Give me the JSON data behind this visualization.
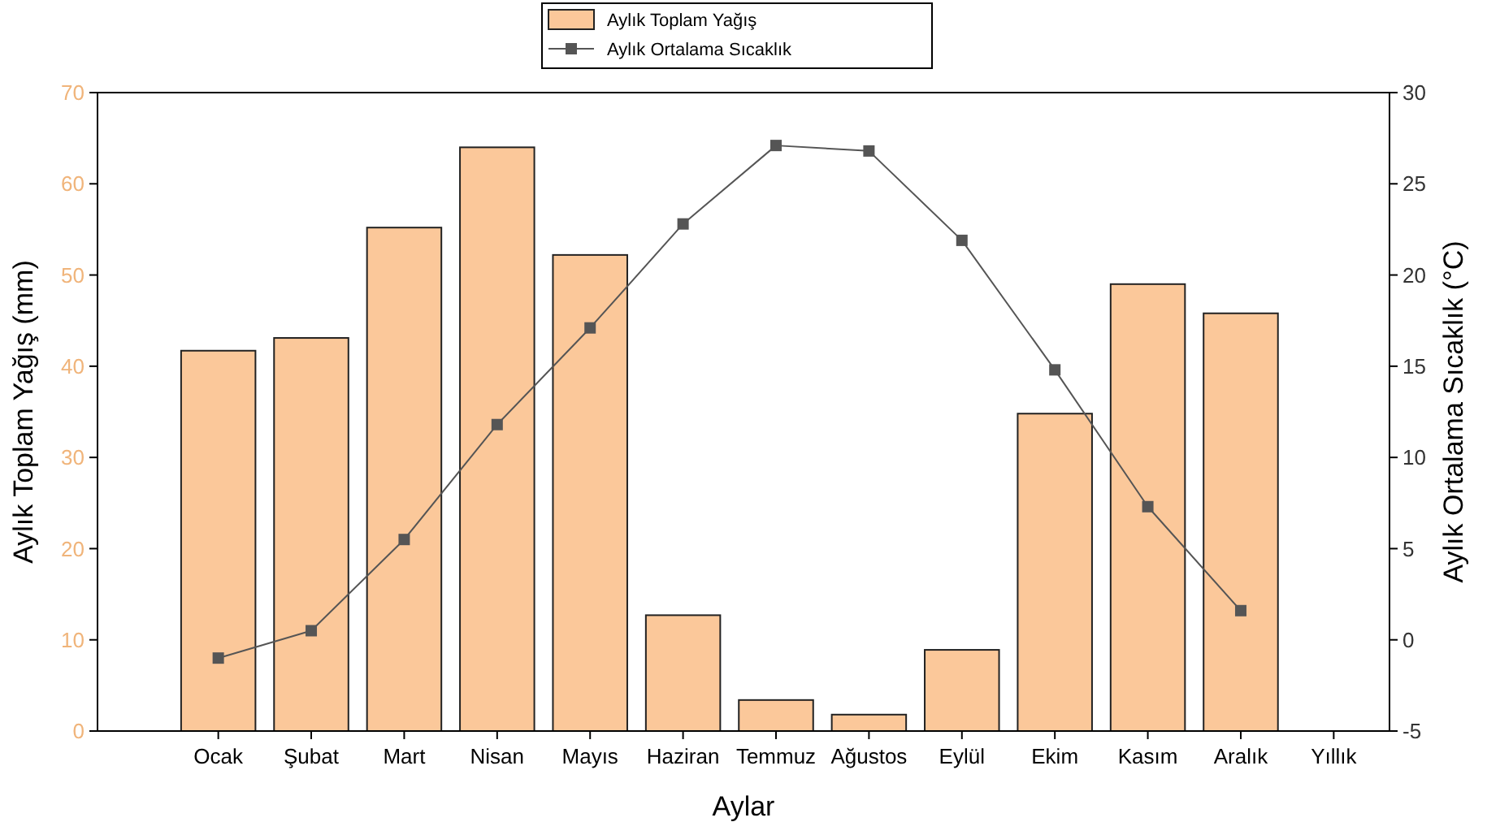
{
  "chart_data": {
    "type": "bar",
    "xlabel": "Aylar",
    "ylabel": "Aylık Toplam Yağış (mm)",
    "y2label": "Aylık Ortalama Sıcaklık (°C)",
    "categories": [
      "Ocak",
      "Şubat",
      "Mart",
      "Nisan",
      "Mayıs",
      "Haziran",
      "Temmuz",
      "Ağustos",
      "Eylül",
      "Ekim",
      "Kasım",
      "Aralık",
      "Yıllık"
    ],
    "series": [
      {
        "name": "Aylık Toplam Yağış",
        "color": "#fbc89a",
        "values": [
          41.7,
          43.1,
          55.2,
          64,
          52.2,
          12.7,
          3.4,
          1.8,
          8.9,
          34.8,
          49,
          45.8,
          null
        ]
      },
      {
        "name": "Aylık Ortalama Sıcaklık",
        "type": "line",
        "axis": "y2",
        "color": "#555555",
        "marker": "square",
        "values": [
          -1,
          0.5,
          5.5,
          11.8,
          17.1,
          22.8,
          27.1,
          26.8,
          21.9,
          14.8,
          7.3,
          1.6,
          null
        ]
      }
    ],
    "ylim": [
      0,
      70
    ],
    "yticks": [
      0,
      10,
      20,
      30,
      40,
      50,
      60,
      70
    ],
    "y2lim": [
      -5,
      30
    ],
    "y2ticks": [
      -5,
      0,
      5,
      10,
      15,
      20,
      25,
      30
    ],
    "legend": "top",
    "grid": false
  }
}
